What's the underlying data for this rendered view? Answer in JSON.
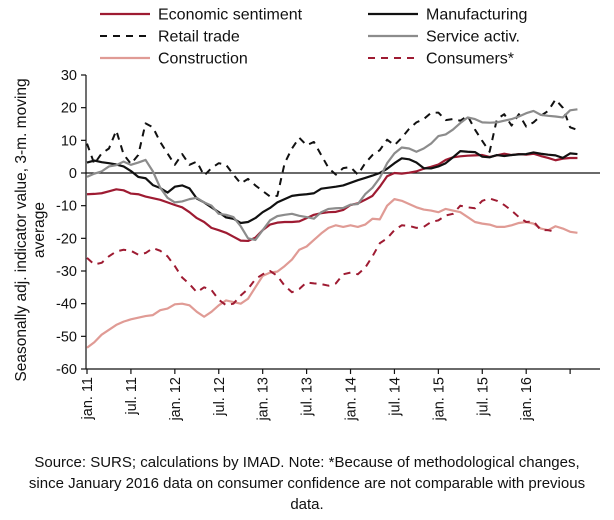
{
  "chart_data": {
    "type": "line",
    "title": "",
    "ylabel": [
      "Seasonally adj. indicator value, 3-m. moving",
      "average"
    ],
    "xlabel": "",
    "ylim": [
      -60,
      30
    ],
    "yticks": [
      30,
      20,
      10,
      0,
      -10,
      -20,
      -30,
      -40,
      -50,
      -60
    ],
    "ytick_labels": [
      "30",
      "20",
      "10",
      "0",
      "-10",
      "-20",
      "-30",
      "-40",
      "-50",
      "-60"
    ],
    "x_start": "jan. 11",
    "x_months": 68,
    "xtick_labels": [
      "jan. 11",
      "jul. 11",
      "jan. 12",
      "jul. 12",
      "jan. 13",
      "jul. 13",
      "jan. 14",
      "jul. 14",
      "jan. 15",
      "jul. 15",
      "jan. 16"
    ],
    "grid": false,
    "legend_position": "top",
    "series": [
      {
        "name": "Economic sentiment",
        "color": "#9e1b32",
        "dash": "solid",
        "width": 2.2,
        "values": [
          -6.5,
          -6.4,
          -6.2,
          -5.6,
          -5.0,
          -5.3,
          -6.3,
          -6.5,
          -7.2,
          -7.7,
          -8.2,
          -9.0,
          -9.8,
          -10.5,
          -12.0,
          -13.8,
          -15.0,
          -16.8,
          -17.5,
          -18.3,
          -19.5,
          -20.7,
          -20.8,
          -19.8,
          -17.5,
          -15.8,
          -15.2,
          -15.0,
          -15.0,
          -14.8,
          -13.8,
          -12.8,
          -12.3,
          -12.0,
          -11.9,
          -11.3,
          -9.8,
          -9.3,
          -8.2,
          -7.0,
          -4.2,
          -1.0,
          0.0,
          -0.2,
          0.1,
          0.5,
          1.3,
          1.9,
          2.6,
          4.0,
          4.8,
          5.1,
          5.3,
          5.4,
          5.5,
          4.9,
          5.4,
          5.9,
          5.5,
          5.8,
          5.6,
          5.9,
          5.2,
          4.6,
          3.9,
          4.4,
          4.6,
          4.6
        ]
      },
      {
        "name": "Manufacturing",
        "color": "#111111",
        "dash": "solid",
        "width": 2.2,
        "values": [
          3.2,
          3.8,
          3.3,
          3.0,
          2.6,
          2.0,
          0.6,
          -1.2,
          -1.6,
          -3.7,
          -4.6,
          -6.0,
          -4.2,
          -3.8,
          -4.7,
          -7.8,
          -9.0,
          -10.5,
          -12.0,
          -13.6,
          -14.0,
          -15.3,
          -15.0,
          -13.8,
          -12.0,
          -10.7,
          -9.0,
          -8.0,
          -7.0,
          -6.7,
          -6.5,
          -6.2,
          -4.8,
          -4.5,
          -4.2,
          -3.8,
          -3.0,
          -2.2,
          -1.5,
          -0.8,
          0.0,
          1.3,
          3.0,
          4.5,
          4.2,
          3.2,
          1.5,
          1.4,
          2.0,
          3.0,
          4.8,
          6.7,
          6.5,
          6.4,
          5.0,
          4.8,
          5.5,
          5.2,
          5.5,
          5.7,
          5.8,
          6.3,
          5.9,
          5.6,
          5.4,
          4.6,
          6.0,
          5.8
        ]
      },
      {
        "name": "Retail trade",
        "color": "#111111",
        "dash": "7 6",
        "width": 2.0,
        "values": [
          9.0,
          2.8,
          6.0,
          7.5,
          13.0,
          5.7,
          2.8,
          5.5,
          15.2,
          14.0,
          9.5,
          6.0,
          2.5,
          5.8,
          2.5,
          3.5,
          -0.8,
          1.5,
          3.0,
          2.5,
          -0.5,
          -3.2,
          -1.8,
          -3.8,
          -5.5,
          -7.2,
          -7.0,
          3.0,
          7.5,
          10.8,
          8.5,
          9.5,
          5.5,
          1.5,
          -0.5,
          1.5,
          1.8,
          -0.5,
          3.0,
          5.5,
          7.0,
          10.2,
          8.5,
          10.8,
          13.5,
          15.5,
          16.5,
          18.4,
          18.5,
          16.2,
          16.5,
          16.0,
          17.5,
          13.3,
          9.8,
          6.5,
          16.5,
          18.0,
          14.5,
          18.0,
          14.2,
          15.5,
          17.5,
          19.0,
          22.5,
          20.0,
          14.0,
          13.2
        ]
      },
      {
        "name": "Service activ.",
        "color": "#8c8c8c",
        "dash": "solid",
        "width": 2.2,
        "values": [
          -1.2,
          -0.2,
          0.5,
          2.0,
          2.4,
          3.5,
          2.5,
          3.2,
          4.0,
          0.5,
          -4.5,
          -7.6,
          -9.0,
          -8.7,
          -8.0,
          -7.6,
          -9.0,
          -10.0,
          -12.5,
          -12.8,
          -13.5,
          -16.3,
          -20.0,
          -20.5,
          -17.5,
          -14.5,
          -13.2,
          -12.8,
          -12.5,
          -13.1,
          -13.5,
          -14.0,
          -12.0,
          -11.0,
          -10.8,
          -10.7,
          -9.7,
          -9.5,
          -6.5,
          -4.5,
          -1.5,
          3.0,
          6.0,
          7.8,
          7.5,
          6.5,
          7.5,
          9.0,
          11.3,
          11.8,
          13.3,
          15.3,
          17.0,
          16.5,
          15.5,
          15.4,
          15.5,
          16.0,
          16.5,
          17.3,
          18.3,
          19.0,
          17.8,
          17.5,
          17.3,
          17.0,
          19.2,
          19.5
        ]
      },
      {
        "name": "Construction",
        "color": "#e09b95",
        "dash": "solid",
        "width": 2.2,
        "values": [
          -53.5,
          -51.8,
          -49.5,
          -48.0,
          -46.5,
          -45.5,
          -44.8,
          -44.3,
          -43.8,
          -43.5,
          -42.0,
          -41.5,
          -40.2,
          -40.0,
          -40.5,
          -42.5,
          -44.0,
          -42.5,
          -40.5,
          -39.0,
          -39.5,
          -40.0,
          -38.5,
          -35.0,
          -31.5,
          -30.5,
          -30.2,
          -28.5,
          -26.5,
          -23.5,
          -22.5,
          -20.5,
          -18.5,
          -16.8,
          -16.0,
          -16.5,
          -16.0,
          -16.5,
          -15.8,
          -14.0,
          -14.2,
          -10.0,
          -8.0,
          -8.5,
          -9.5,
          -10.5,
          -11.2,
          -11.5,
          -12.0,
          -11.0,
          -11.5,
          -12.0,
          -13.5,
          -15.0,
          -15.5,
          -15.8,
          -16.5,
          -16.5,
          -16.0,
          -15.3,
          -15.0,
          -15.5,
          -17.0,
          -17.5,
          -16.3,
          -17.0,
          -18.0,
          -18.3
        ]
      },
      {
        "name": "Consumers*",
        "color": "#9e1b32",
        "dash": "7 6",
        "width": 2.0,
        "values": [
          -26.0,
          -28.0,
          -27.5,
          -25.5,
          -24.0,
          -23.5,
          -23.8,
          -25.0,
          -24.5,
          -23.0,
          -23.8,
          -25.5,
          -28.5,
          -32.0,
          -34.0,
          -36.5,
          -35.0,
          -35.8,
          -38.8,
          -40.5,
          -40.0,
          -37.5,
          -35.5,
          -32.5,
          -31.0,
          -30.0,
          -31.5,
          -34.5,
          -36.5,
          -35.5,
          -33.5,
          -33.8,
          -34.0,
          -34.5,
          -33.8,
          -31.0,
          -30.5,
          -31.0,
          -29.0,
          -25.5,
          -21.5,
          -20.0,
          -17.5,
          -16.0,
          -16.2,
          -16.8,
          -16.5,
          -15.0,
          -14.5,
          -13.0,
          -12.5,
          -10.0,
          -10.5,
          -10.8,
          -8.5,
          -7.8,
          -8.5,
          -9.8,
          -11.5,
          -13.5,
          -15.0,
          -14.8,
          -17.5,
          -17.5,
          -18.0
        ]
      }
    ]
  },
  "source_note": "Source: SURS; calculations by IMAD. Note: *Because of methodological changes, since January 2016 data on consumer confidence are not comparable with previous data."
}
